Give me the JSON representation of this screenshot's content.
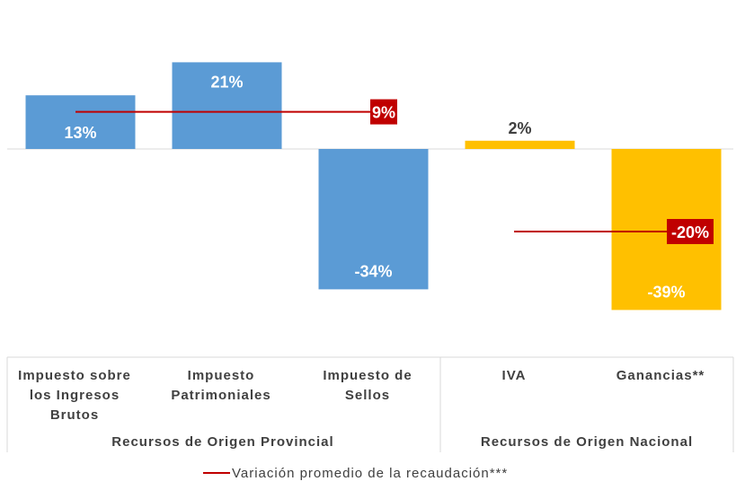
{
  "chart_data": {
    "type": "bar",
    "categories": [
      "Impuesto sobre los Ingresos Brutos",
      "Impuesto Patrimoniales",
      "Impuesto de Sellos",
      "IVA",
      "Ganancias**"
    ],
    "category_lines": [
      [
        "Impuesto sobre",
        "los Ingresos",
        "Brutos"
      ],
      [
        "Impuesto",
        "Patrimoniales"
      ],
      [
        "Impuesto de",
        "Sellos"
      ],
      [
        "IVA"
      ],
      [
        "Ganancias**"
      ]
    ],
    "values": [
      13,
      21,
      -34,
      2,
      -39
    ],
    "data_labels": [
      "13%",
      "21%",
      "-34%",
      "2%",
      "-39%"
    ],
    "bar_groups": [
      "Recursos de Origen Provincial",
      "Recursos de Origen Provincial",
      "Recursos de Origen Provincial",
      "Recursos de Origen Nacional",
      "Recursos de Origen Nacional"
    ],
    "groups": [
      {
        "name": "Recursos de Origen Provincial",
        "color": "#5B9BD5",
        "categories": [
          0,
          1,
          2
        ]
      },
      {
        "name": "Recursos de Origen Nacional",
        "color": "#FFC000",
        "categories": [
          3,
          4
        ]
      }
    ],
    "average_lines": [
      {
        "group": "Recursos de Origen Provincial",
        "value": 9,
        "label": "9%"
      },
      {
        "group": "Recursos de Origen Nacional",
        "value": -20,
        "label": "-20%"
      }
    ],
    "legend": {
      "label": "Variación promedio de la recaudación***",
      "color": "#C00000",
      "placement": "bottom"
    },
    "ylim": [
      -45,
      36
    ],
    "colors": {
      "provincial": "#5B9BD5",
      "nacional": "#FFC000",
      "average": "#C00000",
      "average_label_bg": "#C00000"
    }
  }
}
